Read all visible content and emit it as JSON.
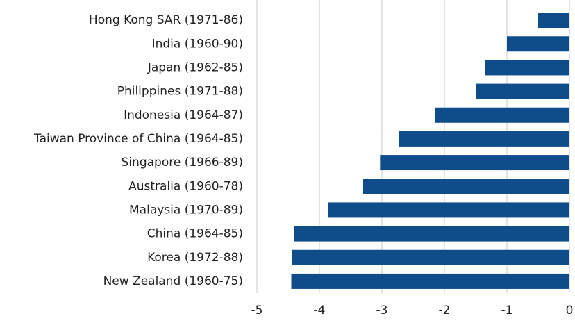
{
  "chart_data": {
    "type": "bar",
    "orientation": "horizontal",
    "categories": [
      "Hong Kong SAR (1971-86)",
      "India (1960-90)",
      "Japan (1962-85)",
      "Philippines (1971-88)",
      "Indonesia (1964-87)",
      "Taiwan Province of China (1964-85)",
      "Singapore (1966-89)",
      "Australia (1960-78)",
      "Malaysia (1970-89)",
      "China (1964-85)",
      "Korea (1972-88)",
      "New Zealand (1960-75)"
    ],
    "values": [
      -0.5,
      -1.0,
      -1.35,
      -1.5,
      -2.15,
      -2.73,
      -3.03,
      -3.3,
      -3.86,
      -4.4,
      -4.44,
      -4.45
    ],
    "color": "#0e4c8a",
    "xlim": [
      -5,
      0
    ],
    "xticks": [
      -5,
      -4,
      -3,
      -2,
      -1,
      0
    ],
    "grid": true
  }
}
